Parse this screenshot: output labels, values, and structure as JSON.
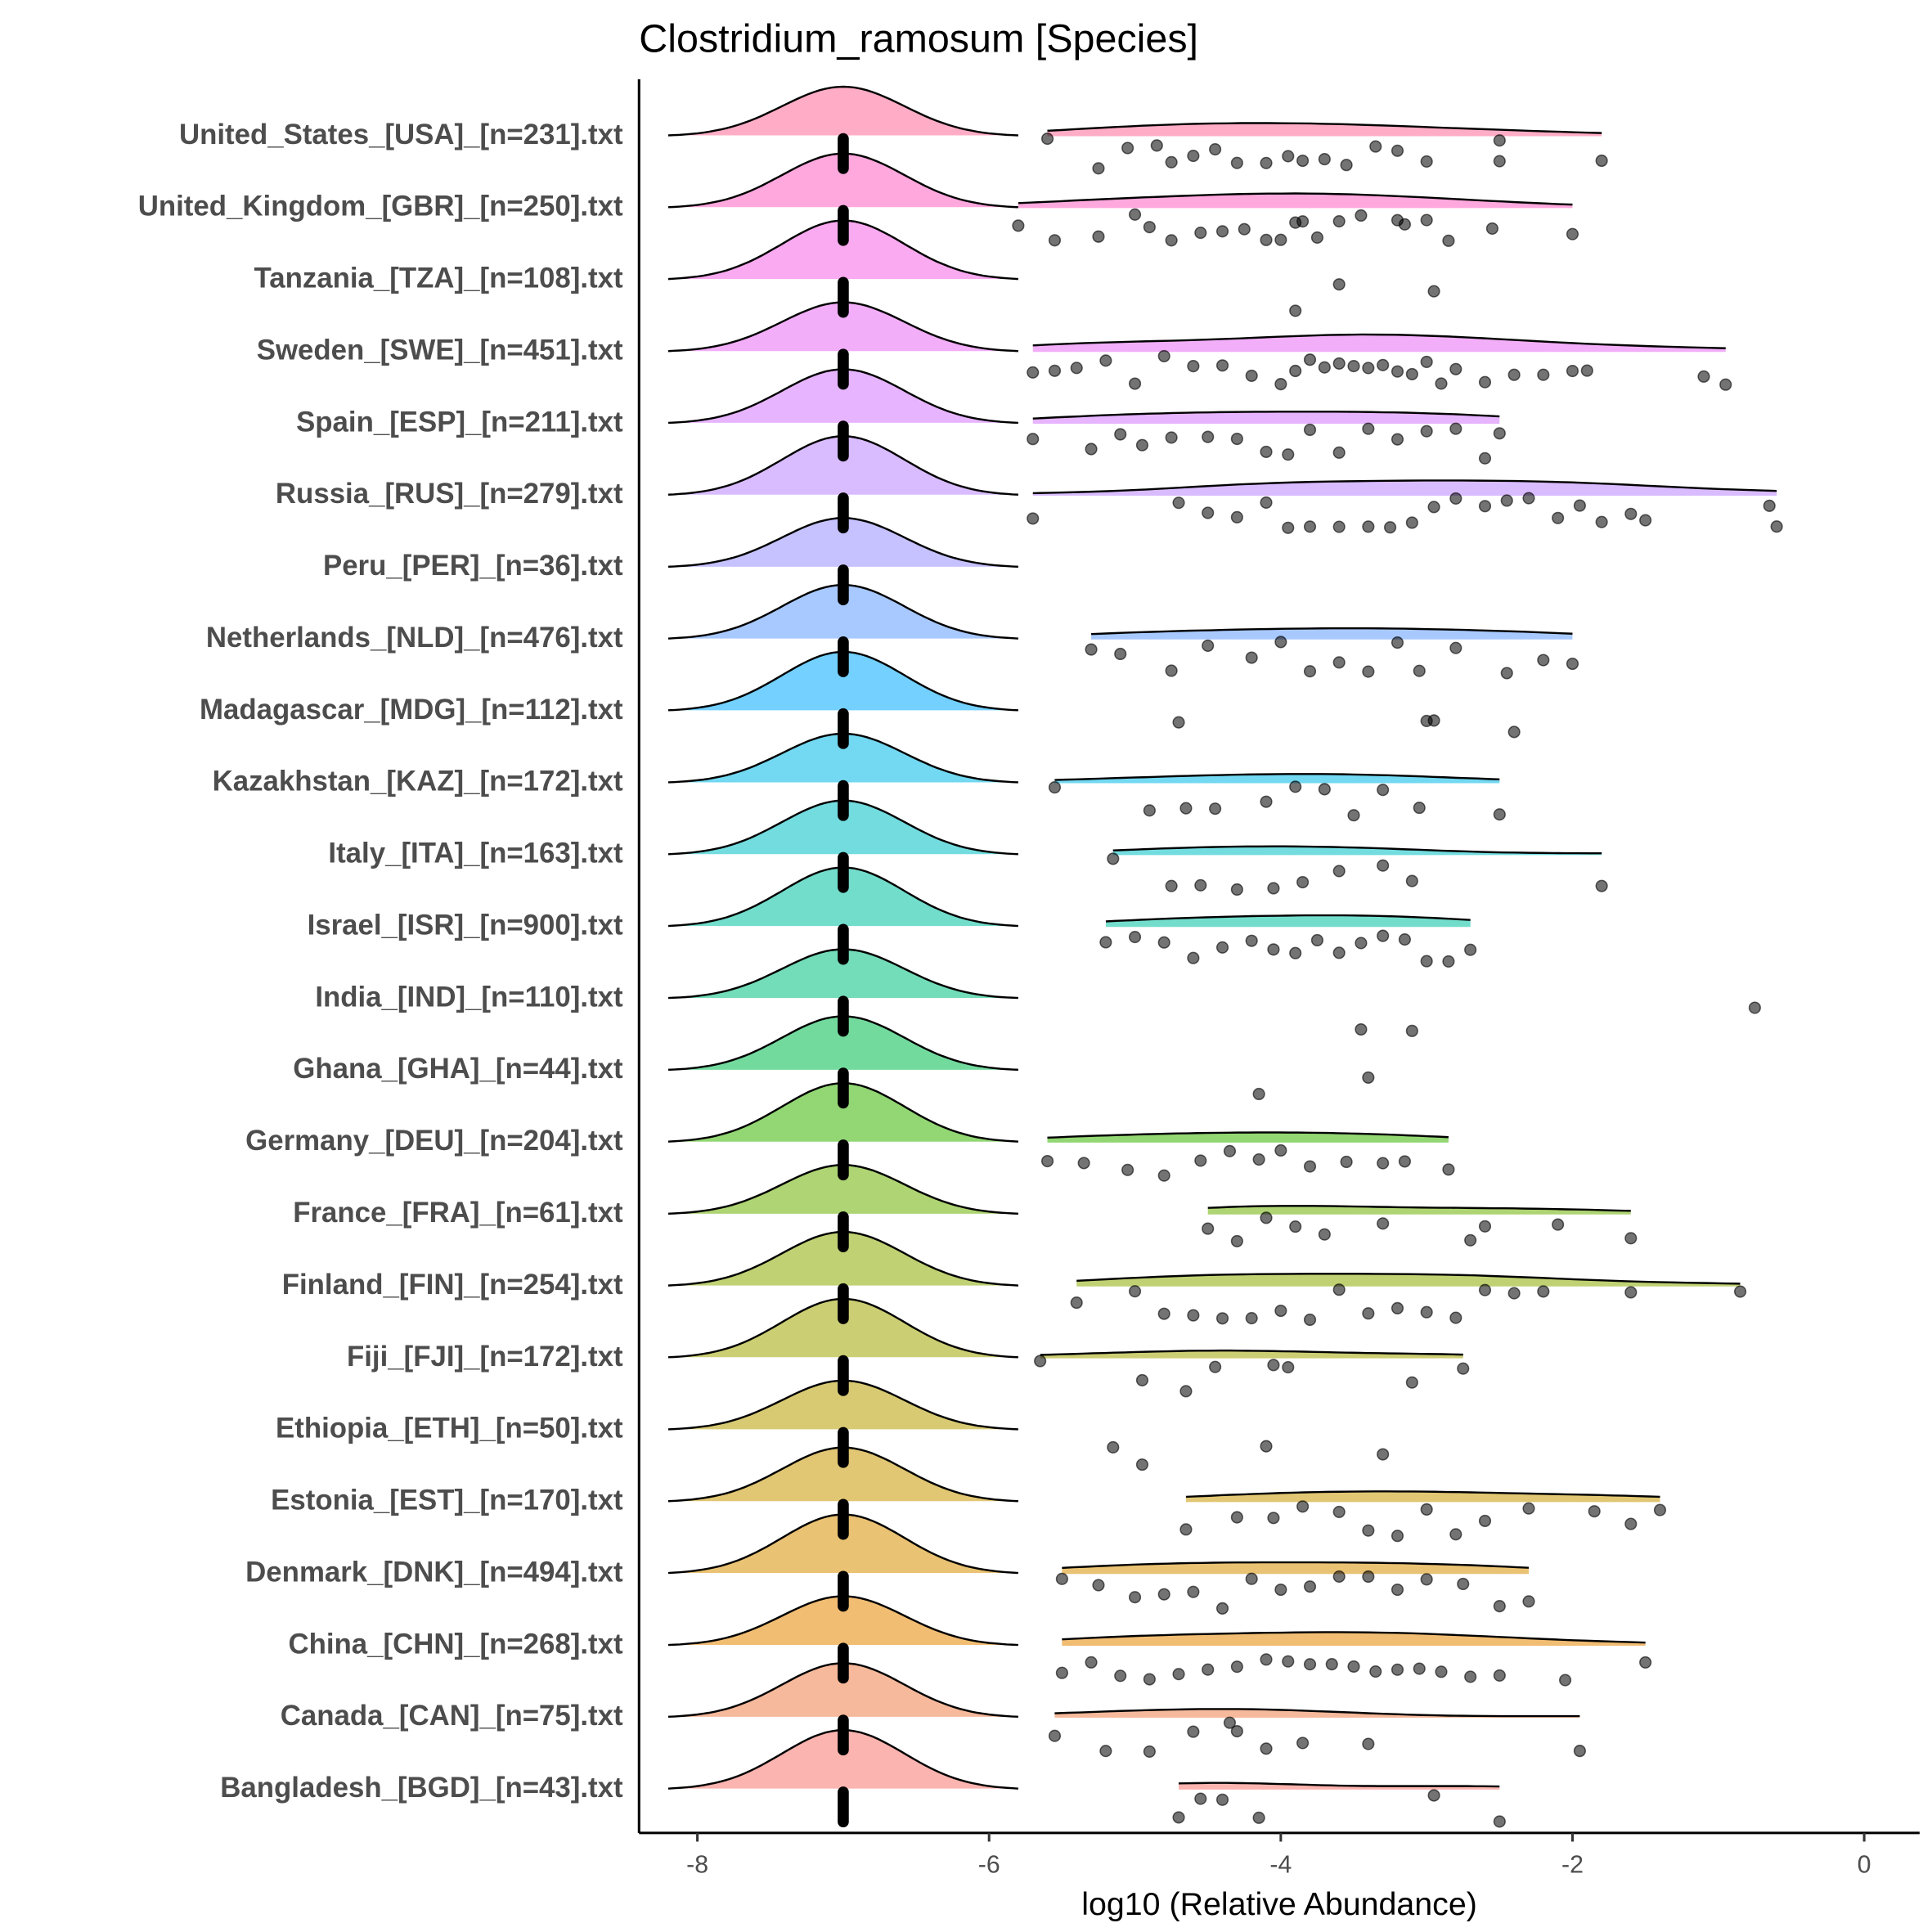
{
  "chart_data": {
    "type": "ridgeline",
    "title": "Clostridium_ramosum [Species]",
    "x_label": "log10 (Relative Abundance)",
    "xlim": [
      -8.4,
      0.38
    ],
    "xticks": [
      -8,
      -6,
      -4,
      -2,
      0
    ],
    "baseline": -7,
    "categories": [
      "United_States_[USA]_[n=231].txt",
      "United_Kingdom_[GBR]_[n=250].txt",
      "Tanzania_[TZA]_[n=108].txt",
      "Sweden_[SWE]_[n=451].txt",
      "Spain_[ESP]_[n=211].txt",
      "Russia_[RUS]_[n=279].txt",
      "Peru_[PER]_[n=36].txt",
      "Netherlands_[NLD]_[n=476].txt",
      "Madagascar_[MDG]_[n=112].txt",
      "Kazakhstan_[KAZ]_[n=172].txt",
      "Italy_[ITA]_[n=163].txt",
      "Israel_[ISR]_[n=900].txt",
      "India_[IND]_[n=110].txt",
      "Ghana_[GHA]_[n=44].txt",
      "Germany_[DEU]_[n=204].txt",
      "France_[FRA]_[n=61].txt",
      "Finland_[FIN]_[n=254].txt",
      "Fiji_[FJI]_[n=172].txt",
      "Ethiopia_[ETH]_[n=50].txt",
      "Estonia_[EST]_[n=170].txt",
      "Denmark_[DNK]_[n=494].txt",
      "China_[CHN]_[n=268].txt",
      "Canada_[CAN]_[n=75].txt",
      "Bangladesh_[BGD]_[n=43].txt"
    ],
    "colors": [
      "#FF6A98",
      "#FF61C3",
      "#F564E3",
      "#E76BF3",
      "#D376FF",
      "#B983FF",
      "#9590FF",
      "#619CFF",
      "#00A9FF",
      "#00B8E5",
      "#00BFC4",
      "#00C1A3",
      "#00BF7D",
      "#00BB4E",
      "#39B600",
      "#6BB100",
      "#8BAB00",
      "#A3A500",
      "#B79F00",
      "#C99800",
      "#D89000",
      "#E58700",
      "#EF7F49",
      "#F8766D"
    ],
    "values": [
      [
        -5.6,
        -5.25,
        -5.05,
        -4.85,
        -4.75,
        -4.6,
        -4.45,
        -4.3,
        -4.1,
        -3.95,
        -3.85,
        -3.7,
        -3.55,
        -3.35,
        -3.2,
        -3.0,
        -2.5,
        -2.5,
        -1.8
      ],
      [
        -5.8,
        -5.55,
        -5.25,
        -5.0,
        -4.9,
        -4.75,
        -4.55,
        -4.4,
        -4.25,
        -4.1,
        -4.0,
        -3.9,
        -3.85,
        -3.75,
        -3.6,
        -3.45,
        -3.2,
        -3.15,
        -3.0,
        -2.85,
        -2.55,
        -2.0
      ],
      [
        -3.9,
        -3.6,
        -2.95
      ],
      [
        -5.7,
        -5.55,
        -5.4,
        -5.2,
        -5.0,
        -4.8,
        -4.6,
        -4.4,
        -4.2,
        -4.0,
        -3.9,
        -3.8,
        -3.7,
        -3.6,
        -3.5,
        -3.4,
        -3.3,
        -3.2,
        -3.1,
        -3.0,
        -2.9,
        -2.8,
        -2.6,
        -2.4,
        -2.2,
        -2.0,
        -1.9,
        -1.1,
        -0.95
      ],
      [
        -5.7,
        -5.3,
        -5.1,
        -4.95,
        -4.75,
        -4.5,
        -4.3,
        -4.1,
        -3.95,
        -3.8,
        -3.6,
        -3.4,
        -3.2,
        -3.0,
        -2.8,
        -2.6,
        -2.5
      ],
      [
        -5.7,
        -4.7,
        -4.5,
        -4.3,
        -4.1,
        -3.95,
        -3.8,
        -3.6,
        -3.4,
        -3.25,
        -3.1,
        -2.95,
        -2.8,
        -2.6,
        -2.45,
        -2.3,
        -2.1,
        -1.95,
        -1.8,
        -1.6,
        -1.5,
        -0.65,
        -0.6
      ],
      [],
      [
        -5.3,
        -5.1,
        -4.75,
        -4.5,
        -4.2,
        -4.0,
        -3.8,
        -3.6,
        -3.4,
        -3.2,
        -3.05,
        -2.8,
        -2.45,
        -2.2,
        -2.0
      ],
      [
        -4.7,
        -3.0,
        -2.95,
        -2.4
      ],
      [
        -5.55,
        -4.9,
        -4.65,
        -4.45,
        -4.1,
        -3.9,
        -3.7,
        -3.5,
        -3.3,
        -3.05,
        -2.5
      ],
      [
        -5.15,
        -4.75,
        -4.55,
        -4.3,
        -4.05,
        -3.85,
        -3.6,
        -3.3,
        -3.1,
        -1.8
      ],
      [
        -5.2,
        -5.0,
        -4.8,
        -4.6,
        -4.4,
        -4.2,
        -4.05,
        -3.9,
        -3.75,
        -3.6,
        -3.45,
        -3.3,
        -3.15,
        -3.0,
        -2.85,
        -2.7
      ],
      [
        -3.45,
        -3.1,
        -0.75
      ],
      [
        -4.15,
        -3.4
      ],
      [
        -5.6,
        -5.35,
        -5.05,
        -4.8,
        -4.55,
        -4.35,
        -4.15,
        -4.0,
        -3.8,
        -3.55,
        -3.3,
        -3.15,
        -2.85
      ],
      [
        -4.5,
        -4.3,
        -4.1,
        -3.9,
        -3.7,
        -3.3,
        -2.7,
        -2.6,
        -2.1,
        -1.6
      ],
      [
        -5.4,
        -5.0,
        -4.8,
        -4.6,
        -4.4,
        -4.2,
        -4.0,
        -3.8,
        -3.6,
        -3.4,
        -3.2,
        -3.0,
        -2.8,
        -2.6,
        -2.4,
        -2.2,
        -1.6,
        -0.85
      ],
      [
        -5.65,
        -4.95,
        -4.65,
        -4.45,
        -4.05,
        -3.95,
        -3.1,
        -2.75
      ],
      [
        -5.15,
        -4.95,
        -4.1,
        -3.3
      ],
      [
        -4.65,
        -4.3,
        -4.05,
        -3.85,
        -3.6,
        -3.4,
        -3.2,
        -3.0,
        -2.8,
        -2.6,
        -2.3,
        -1.85,
        -1.6,
        -1.4
      ],
      [
        -5.5,
        -5.25,
        -5.0,
        -4.8,
        -4.6,
        -4.4,
        -4.2,
        -4.0,
        -3.8,
        -3.6,
        -3.4,
        -3.2,
        -3.0,
        -2.75,
        -2.5,
        -2.3
      ],
      [
        -5.5,
        -5.3,
        -5.1,
        -4.9,
        -4.7,
        -4.5,
        -4.3,
        -4.1,
        -3.95,
        -3.8,
        -3.65,
        -3.5,
        -3.35,
        -3.2,
        -3.05,
        -2.9,
        -2.7,
        -2.5,
        -2.05,
        -1.5
      ],
      [
        -5.55,
        -5.2,
        -4.9,
        -4.6,
        -4.35,
        -4.3,
        -4.1,
        -3.85,
        -3.4,
        -1.95
      ],
      [
        -4.7,
        -4.55,
        -4.4,
        -4.15,
        -2.95,
        -2.5
      ]
    ]
  }
}
